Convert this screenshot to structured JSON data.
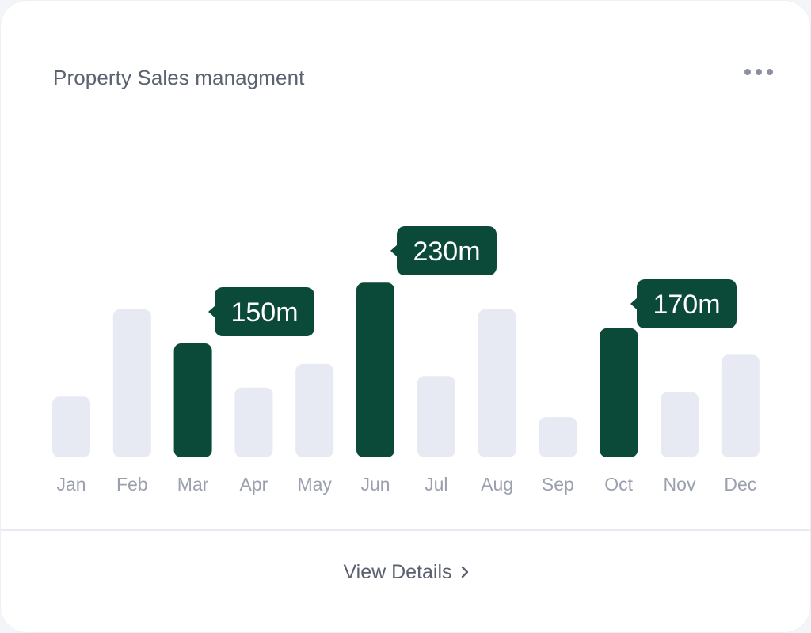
{
  "card": {
    "title": "Property Sales managment",
    "more_icon": "more-horizontal-icon",
    "footer": {
      "label": "View Details",
      "icon": "chevron-right-icon"
    }
  },
  "colors": {
    "highlight": "#0b4a39",
    "muted": "#e8eaf3",
    "axis_text": "#9aa0ae",
    "title": "#5b6270"
  },
  "chart_data": {
    "type": "bar",
    "categories": [
      "Jan",
      "Feb",
      "Mar",
      "Apr",
      "May",
      "Jun",
      "Jul",
      "Aug",
      "Sep",
      "Oct",
      "Nov",
      "Dec"
    ],
    "values": [
      80,
      195,
      150,
      92,
      123,
      230,
      107,
      195,
      53,
      170,
      86,
      135
    ],
    "highlighted": [
      "Mar",
      "Jun",
      "Oct"
    ],
    "data_labels": {
      "Mar": "150m",
      "Jun": "230m",
      "Oct": "170m"
    },
    "title": "Property Sales managment",
    "xlabel": "",
    "ylabel": "",
    "grid": false
  }
}
